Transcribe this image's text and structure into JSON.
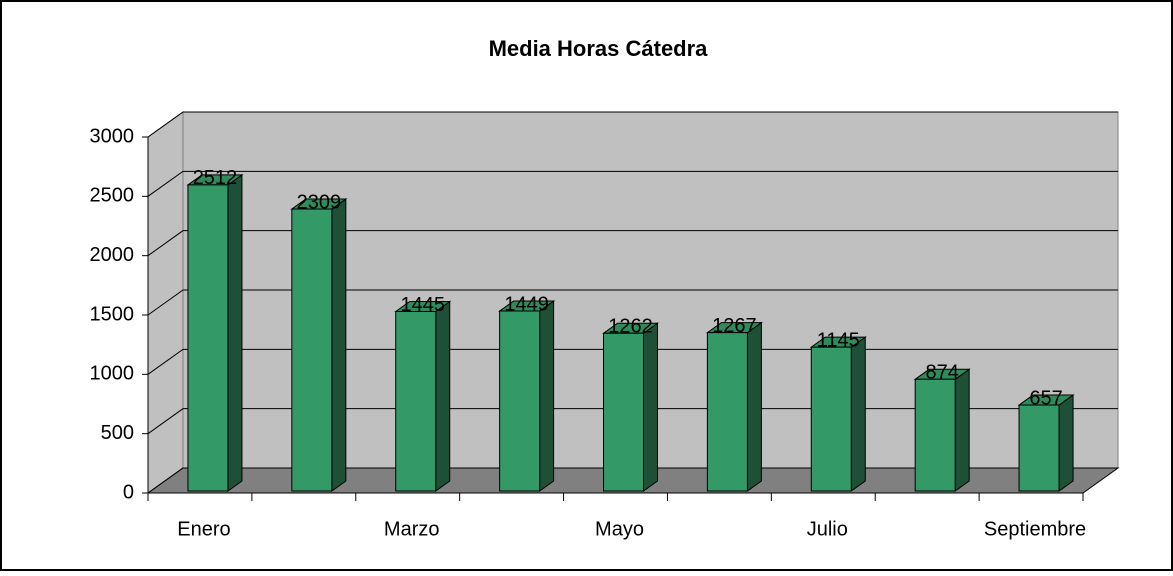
{
  "chart_data": {
    "type": "bar3d",
    "title": "Media Horas Cátedra",
    "categories": [
      "Enero",
      null,
      "Marzo",
      null,
      "Mayo",
      null,
      "Julio",
      null,
      "Septiembre"
    ],
    "values": [
      2512,
      2309,
      1445,
      1449,
      1262,
      1267,
      1145,
      874,
      657
    ],
    "color": "#339966",
    "ylim": [
      0,
      3000
    ],
    "yticks": [
      0,
      500,
      1000,
      1500,
      2000,
      2500,
      3000
    ],
    "grid": true
  }
}
